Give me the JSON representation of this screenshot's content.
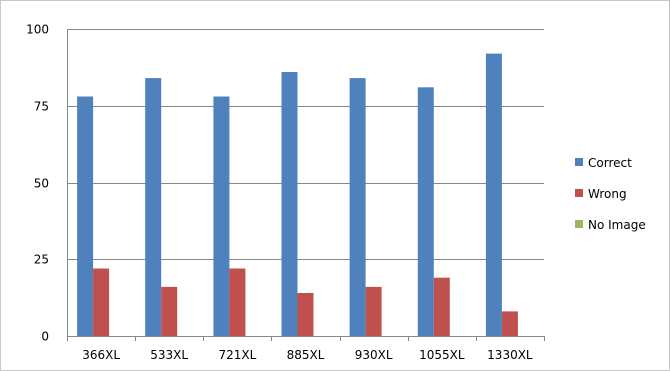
{
  "chart_data": {
    "type": "bar",
    "title": "",
    "xlabel": "",
    "ylabel": "",
    "categories": [
      "366XL",
      "533XL",
      "721XL",
      "885XL",
      "930XL",
      "1055XL",
      "1330XL"
    ],
    "series": [
      {
        "name": "Correct",
        "color": "#4f81bd",
        "values": [
          78,
          84,
          78,
          86,
          84,
          81,
          92
        ]
      },
      {
        "name": "Wrong",
        "color": "#c0504d",
        "values": [
          22,
          16,
          22,
          14,
          16,
          19,
          8
        ]
      },
      {
        "name": "No Image",
        "color": "#9bbb59",
        "values": [
          0,
          0,
          0,
          0,
          0,
          0,
          0
        ]
      }
    ],
    "ylim": [
      0,
      100
    ],
    "yticks": [
      0,
      25,
      50,
      75,
      100
    ],
    "grid": true,
    "legend_position": "right"
  }
}
